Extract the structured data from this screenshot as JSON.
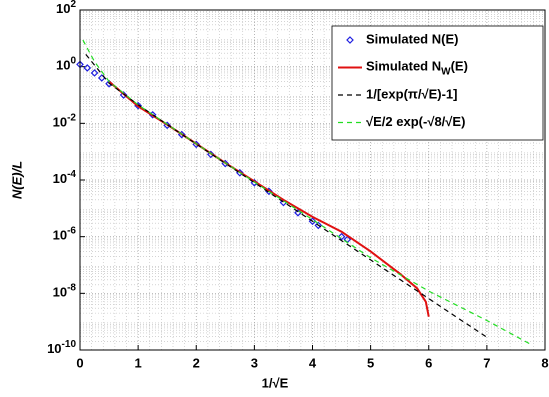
{
  "chart_data": {
    "type": "line",
    "ylabel": "N(E)/L",
    "xlabel": "1/√E",
    "xlim": [
      0,
      8
    ],
    "xticks": [
      0,
      1,
      2,
      3,
      4,
      5,
      6,
      7,
      8
    ],
    "ylim": [
      1e-10,
      100
    ],
    "yscale": "log",
    "yticks": [
      {
        "value": 1e-10,
        "label": "10^-10"
      },
      {
        "value": 1e-08,
        "label": "10^-8"
      },
      {
        "value": 1e-06,
        "label": "10^-6"
      },
      {
        "value": 0.0001,
        "label": "10^-4"
      },
      {
        "value": 0.01,
        "label": "10^-2"
      },
      {
        "value": 1,
        "label": "10^0"
      },
      {
        "value": 100,
        "label": "10^2"
      }
    ],
    "grid": true,
    "legend": "upper right",
    "series": [
      {
        "name": "Simulated N(E)",
        "color": "#1f1fe0",
        "marker": "diamond",
        "x": [
          0,
          0.125,
          0.25,
          0.375,
          0.5,
          0.75,
          1,
          1.25,
          1.5,
          1.75,
          2,
          2.25,
          2.5,
          2.75,
          3,
          3.25,
          3.5,
          3.75,
          4,
          4.1,
          4.5,
          4.6
        ],
        "values": [
          1.2,
          0.9,
          0.6,
          0.4,
          0.25,
          0.1,
          0.042,
          0.02,
          0.0085,
          0.004,
          0.0018,
          0.0008,
          0.00038,
          0.00018,
          8e-05,
          4e-05,
          1.6e-05,
          7e-06,
          3.5e-06,
          2.5e-06,
          1e-06,
          8e-07
        ]
      },
      {
        "name": "Simulated N_W(E)",
        "color": "#e01010",
        "dash": "none",
        "x": [
          0.5,
          1,
          1.5,
          2,
          2.5,
          3,
          3.5,
          4,
          4.5,
          5,
          5.5,
          5.8,
          5.95,
          6
        ],
        "values": [
          0.3,
          0.04,
          0.009,
          0.0019,
          0.0004,
          9e-05,
          2e-05,
          5e-06,
          1.5e-06,
          3e-07,
          5e-08,
          1.5e-08,
          5e-09,
          1.5e-09
        ]
      },
      {
        "name": "1/[exp(π/√E)-1]",
        "color": "#000000",
        "dash": "5,4",
        "x": [
          0.1,
          0.5,
          1,
          1.5,
          2,
          2.5,
          3,
          3.5,
          4,
          4.5,
          5,
          5.5,
          6,
          6.5,
          7
        ],
        "values": [
          2.71,
          0.262,
          0.0452,
          0.00907,
          0.00187,
          0.000388,
          8.07e-05,
          1.68e-05,
          3.49e-06,
          7.25e-07,
          1.51e-07,
          3.13e-08,
          6.51e-09,
          1.35e-09,
          2.82e-10
        ]
      },
      {
        "name": "√E/2 exp(-√8/√E)",
        "color": "#22dd22",
        "dash": "5,4",
        "x": [
          0.05,
          0.25,
          0.5,
          1,
          2,
          3,
          4,
          5,
          6,
          7,
          7.75
        ],
        "values": [
          8.7,
          1.5,
          0.3,
          0.045,
          0.0019,
          8.5e-05,
          4e-06,
          1.8e-07,
          1.2e-08,
          1.1e-09,
          1.6e-10
        ]
      }
    ]
  }
}
